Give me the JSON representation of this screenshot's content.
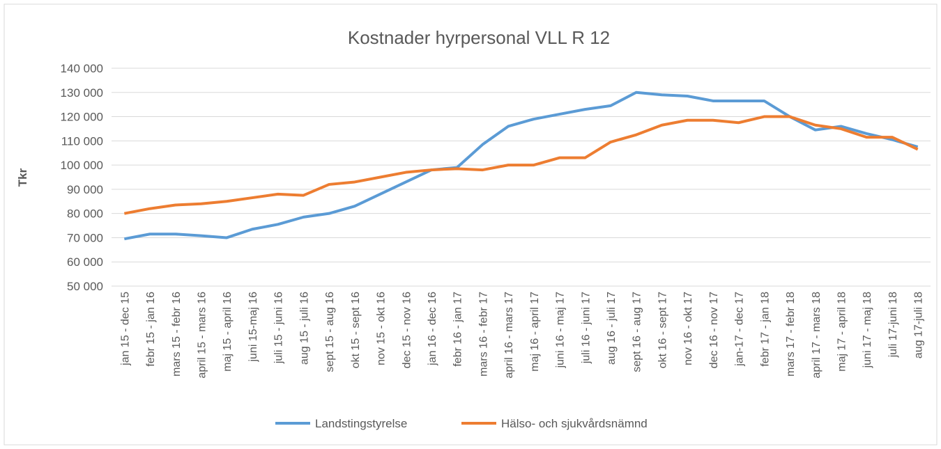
{
  "chart_data": {
    "type": "line",
    "title": "Kostnader hyrpersonal VLL R 12",
    "y_label": "Tkr",
    "categories": [
      "jan 15 - dec 15",
      "febr 15 - jan 16",
      "mars 15 - febr 16",
      "april 15 - mars 16",
      "maj 15 - april 16",
      "juni 15-maj 16",
      "juli 15 - juni 16",
      "aug 15 - juli 16",
      "sept 15 - aug 16",
      "okt 15 - sept 16",
      "nov 15 - okt 16",
      "dec 15 - nov 16",
      "jan 16 - dec 16",
      "febr 16 - jan 17",
      "mars 16 - febr 17",
      "april 16 - mars 17",
      "maj 16 - april 17",
      "juni 16 - maj 17",
      "juli 16 - juni 17",
      "aug 16 - juli 17",
      "sept 16 - aug 17",
      "okt 16 - sept 17",
      "nov 16 - okt 17",
      "dec 16 - nov 17",
      "jan-17 - dec 17",
      "febr 17 - jan 18",
      "mars 17 - febr 18",
      "april 17 - mars 18",
      "maj 17 - april 18",
      "juni 17 - maj 18",
      "juli 17-juni 18",
      "aug 17-juli 18"
    ],
    "series": [
      {
        "name": "Landstingstyrelse",
        "color": "#5b9bd5",
        "values": [
          69500,
          71500,
          71500,
          70800,
          70000,
          73500,
          75500,
          78500,
          80000,
          83000,
          88000,
          93000,
          98000,
          99000,
          108500,
          116000,
          119000,
          121000,
          123000,
          124500,
          130000,
          129000,
          128500,
          126500,
          126500,
          126500,
          120000,
          114500,
          116000,
          113000,
          110500,
          107500
        ]
      },
      {
        "name": "Hälso- och sjukvårdsnämnd",
        "color": "#ed7d31",
        "values": [
          80000,
          82000,
          83500,
          84000,
          85000,
          86500,
          88000,
          87500,
          92000,
          93000,
          95000,
          97000,
          98000,
          98500,
          98000,
          100000,
          100000,
          103000,
          103000,
          109500,
          112500,
          116500,
          118500,
          118500,
          117500,
          120000,
          120000,
          116500,
          115000,
          111500,
          111500,
          106500
        ]
      }
    ],
    "ylim": [
      50000,
      140000
    ],
    "yticks": [
      {
        "value": 50000,
        "label": "50 000"
      },
      {
        "value": 60000,
        "label": "60 000"
      },
      {
        "value": 70000,
        "label": "70 000"
      },
      {
        "value": 80000,
        "label": "80 000"
      },
      {
        "value": 90000,
        "label": "90 000"
      },
      {
        "value": 100000,
        "label": "100 000"
      },
      {
        "value": 110000,
        "label": "110 000"
      },
      {
        "value": 120000,
        "label": "120 000"
      },
      {
        "value": 130000,
        "label": "130 000"
      },
      {
        "value": 140000,
        "label": "140 000"
      }
    ],
    "grid": true,
    "legend": "bottom"
  }
}
